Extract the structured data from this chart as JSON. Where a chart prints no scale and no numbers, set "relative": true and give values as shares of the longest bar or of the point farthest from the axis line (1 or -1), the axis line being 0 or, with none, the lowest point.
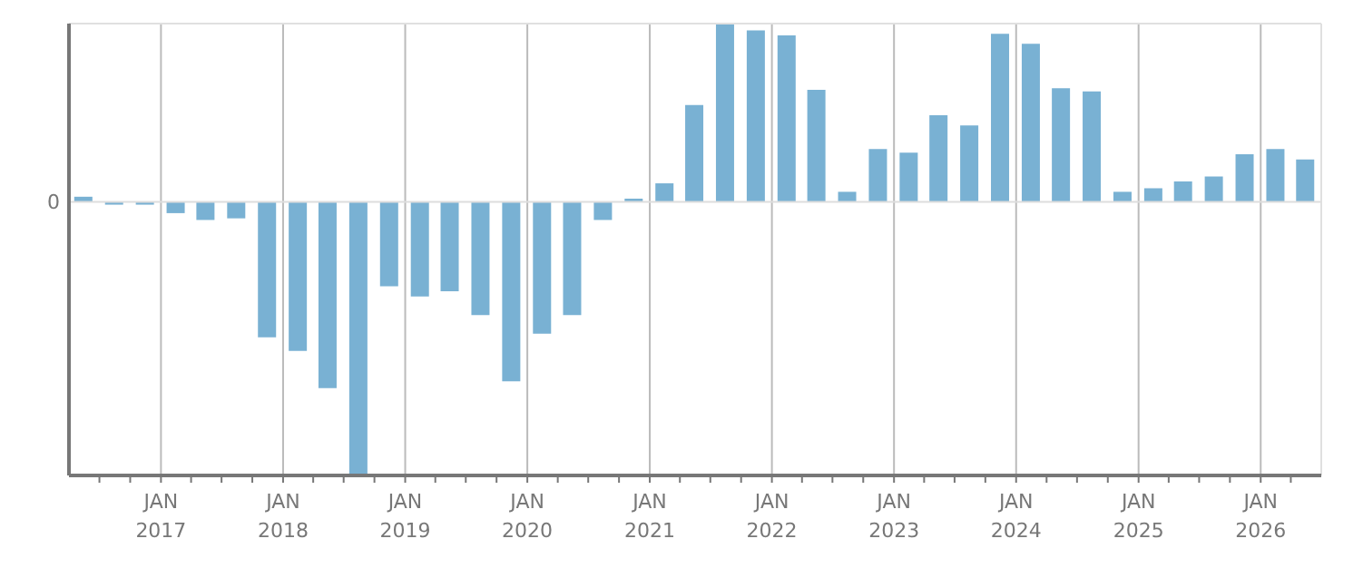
{
  "chart_data": {
    "type": "bar",
    "relative": true,
    "x": [
      "2016-05-15",
      "2016-08-15",
      "2016-11-15",
      "2017-02-15",
      "2017-05-15",
      "2017-08-15",
      "2017-11-15",
      "2018-02-15",
      "2018-05-15",
      "2018-08-15",
      "2018-11-15",
      "2019-02-15",
      "2019-05-15",
      "2019-08-15",
      "2019-11-15",
      "2020-02-15",
      "2020-05-15",
      "2020-08-15",
      "2020-11-15",
      "2021-02-15",
      "2021-05-15",
      "2021-08-15",
      "2021-11-15",
      "2022-02-15",
      "2022-05-15",
      "2022-08-15",
      "2022-11-15",
      "2023-02-15",
      "2023-05-15",
      "2023-08-15",
      "2023-11-15",
      "2024-02-15",
      "2024-05-15",
      "2024-08-15",
      "2024-11-15",
      "2025-02-15",
      "2025-05-15",
      "2025-08-15",
      "2025-11-15",
      "2026-02-15",
      "2026-05-15"
    ],
    "values": [
      0.019,
      -0.01,
      -0.01,
      -0.041,
      -0.066,
      -0.06,
      -0.495,
      -0.545,
      -0.681,
      -1,
      -0.308,
      -0.346,
      -0.327,
      -0.414,
      -0.656,
      -0.482,
      -0.414,
      -0.066,
      0.012,
      0.068,
      0.354,
      0.652,
      0.627,
      0.609,
      0.41,
      0.037,
      0.193,
      0.18,
      0.317,
      0.28,
      0.615,
      0.578,
      0.416,
      0.404,
      0.037,
      0.05,
      0.075,
      0.093,
      0.174,
      0.193,
      0.155
    ],
    "color": "#79b1d3",
    "xlim": [
      "2016-04-01",
      "2026-07-01"
    ],
    "xticks": [
      {
        "value": "2016-07-01",
        "label": null
      },
      {
        "value": "2016-10-01",
        "label": null
      },
      {
        "value": "2017-01-01",
        "label": "JAN 2017"
      },
      {
        "value": "2017-04-01",
        "label": null
      },
      {
        "value": "2017-07-01",
        "label": null
      },
      {
        "value": "2017-10-01",
        "label": null
      },
      {
        "value": "2018-01-01",
        "label": "JAN 2018"
      },
      {
        "value": "2018-04-01",
        "label": null
      },
      {
        "value": "2018-07-01",
        "label": null
      },
      {
        "value": "2018-10-01",
        "label": null
      },
      {
        "value": "2019-01-01",
        "label": "JAN 2019"
      },
      {
        "value": "2019-04-01",
        "label": null
      },
      {
        "value": "2019-07-01",
        "label": null
      },
      {
        "value": "2019-10-01",
        "label": null
      },
      {
        "value": "2020-01-01",
        "label": "JAN 2020"
      },
      {
        "value": "2020-04-01",
        "label": null
      },
      {
        "value": "2020-07-01",
        "label": null
      },
      {
        "value": "2020-10-01",
        "label": null
      },
      {
        "value": "2021-01-01",
        "label": "JAN 2021"
      },
      {
        "value": "2021-04-01",
        "label": null
      },
      {
        "value": "2021-07-01",
        "label": null
      },
      {
        "value": "2021-10-01",
        "label": null
      },
      {
        "value": "2022-01-01",
        "label": "JAN 2022"
      },
      {
        "value": "2022-04-01",
        "label": null
      },
      {
        "value": "2022-07-01",
        "label": null
      },
      {
        "value": "2022-10-01",
        "label": null
      },
      {
        "value": "2023-01-01",
        "label": "JAN 2023"
      },
      {
        "value": "2023-04-01",
        "label": null
      },
      {
        "value": "2023-07-01",
        "label": null
      },
      {
        "value": "2023-10-01",
        "label": null
      },
      {
        "value": "2024-01-01",
        "label": "JAN 2024"
      },
      {
        "value": "2024-04-01",
        "label": null
      },
      {
        "value": "2024-07-01",
        "label": null
      },
      {
        "value": "2024-10-01",
        "label": null
      },
      {
        "value": "2025-01-01",
        "label": "JAN 2025"
      },
      {
        "value": "2025-04-01",
        "label": null
      },
      {
        "value": "2025-07-01",
        "label": null
      },
      {
        "value": "2025-10-01",
        "label": null
      },
      {
        "value": "2026-01-01",
        "label": "JAN 2026"
      },
      {
        "value": "2026-04-01",
        "label": null
      }
    ],
    "ref_lines": [
      {
        "axis": "y",
        "value": 0,
        "label": "0",
        "color": "#dddddd"
      }
    ],
    "grid": "x"
  }
}
